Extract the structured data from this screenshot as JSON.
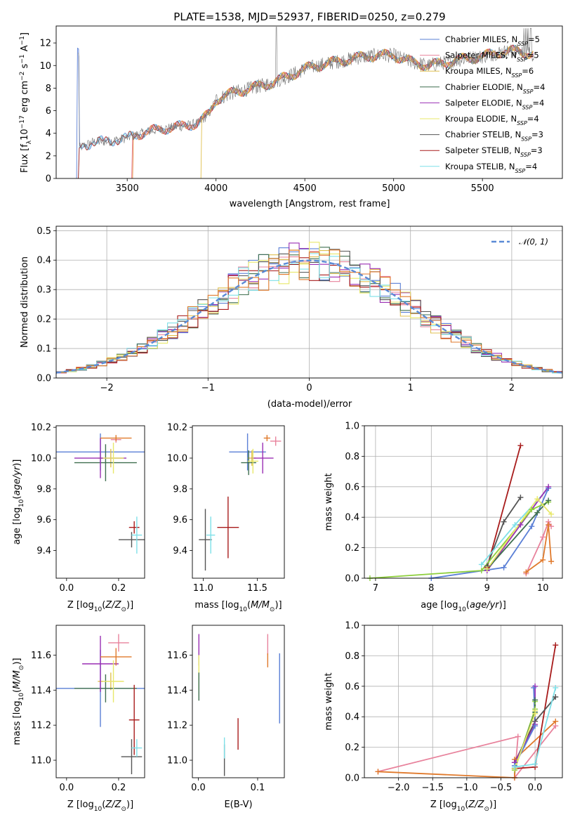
{
  "title": "PLATE=1538, MJD=52937, FIBERID=0250, z=0.279",
  "colors": {
    "Chabrier MILES": "#5a7fd6",
    "Salpeter MILES": "#e8829c",
    "Kroupa MILES": "#e0c050",
    "Chabrier ELODIE": "#3f6f4f",
    "Salpeter ELODIE": "#9a2fb4",
    "Kroupa ELODIE": "#e8e86a",
    "Chabrier STELIB": "#555555",
    "Salpeter STELIB": "#a81c1c",
    "Kroupa STELIB": "#7ee0e8",
    "orange": "#e07a2c",
    "green": "#8ecf3c",
    "gaussian": "#5a8ad6"
  },
  "legend": [
    {
      "name": "Chabrier MILES",
      "label_main": "Chabrier MILES, N",
      "label_sub": "SSP",
      "label_val": "=5"
    },
    {
      "name": "Salpeter MILES",
      "label_main": "Salpeter MILES, N",
      "label_sub": "SSP",
      "label_val": "=5"
    },
    {
      "name": "Kroupa MILES",
      "label_main": "Kroupa MILES, N",
      "label_sub": "SSP",
      "label_val": "=6"
    },
    {
      "name": "Chabrier ELODIE",
      "label_main": "Chabrier ELODIE, N",
      "label_sub": "SSP",
      "label_val": "=4"
    },
    {
      "name": "Salpeter ELODIE",
      "label_main": "Salpeter ELODIE, N",
      "label_sub": "SSP",
      "label_val": "=4"
    },
    {
      "name": "Kroupa ELODIE",
      "label_main": "Kroupa ELODIE, N",
      "label_sub": "SSP",
      "label_val": "=4"
    },
    {
      "name": "Chabrier STELIB",
      "label_main": "Chabrier STELIB, N",
      "label_sub": "SSP",
      "label_val": "=3"
    },
    {
      "name": "Salpeter STELIB",
      "label_main": "Salpeter STELIB, N",
      "label_sub": "SSP",
      "label_val": "=3"
    },
    {
      "name": "Kroupa STELIB",
      "label_main": "Kroupa STELIB, N",
      "label_sub": "SSP",
      "label_val": "=4"
    }
  ],
  "chart_data": [
    {
      "id": "spectrum",
      "type": "line",
      "title": "PLATE=1538, MJD=52937, FIBERID=0250, z=0.279",
      "xlabel": "wavelength [Angstrom, rest frame]",
      "ylabel": "Flux [fλ10⁻¹⁷ erg cm⁻² s⁻¹ A⁻¹]",
      "xlim": [
        3100,
        5950
      ],
      "ylim": [
        0,
        13.5
      ],
      "xticks": [
        3500,
        4000,
        4500,
        5000,
        5500
      ],
      "yticks": [
        0,
        2,
        4,
        6,
        8,
        10,
        12
      ],
      "grid": false,
      "legend_position": "top-right",
      "series_start": [
        {
          "name": "Chabrier MILES",
          "start": 3220
        },
        {
          "name": "Salpeter MILES",
          "start": 3530
        },
        {
          "name": "Kroupa MILES",
          "start": 3920
        }
      ],
      "continuum": [
        [
          3230,
          2.7
        ],
        [
          3300,
          3.2
        ],
        [
          3400,
          3.3
        ],
        [
          3500,
          3.6
        ],
        [
          3600,
          4.1
        ],
        [
          3700,
          4.4
        ],
        [
          3800,
          4.6
        ],
        [
          3900,
          4.9
        ],
        [
          3960,
          5.7
        ],
        [
          4000,
          7.0
        ],
        [
          4100,
          7.6
        ],
        [
          4200,
          8.0
        ],
        [
          4300,
          8.4
        ],
        [
          4400,
          9.0
        ],
        [
          4500,
          9.7
        ],
        [
          4600,
          10.1
        ],
        [
          4700,
          10.4
        ],
        [
          4800,
          10.7
        ],
        [
          4900,
          10.9
        ],
        [
          5000,
          10.9
        ],
        [
          5100,
          10.3
        ],
        [
          5200,
          10.0
        ],
        [
          5300,
          10.3
        ],
        [
          5400,
          10.6
        ],
        [
          5500,
          10.8
        ],
        [
          5600,
          11.2
        ],
        [
          5700,
          11.3
        ],
        [
          5780,
          11.0
        ]
      ]
    },
    {
      "id": "residuals",
      "type": "bar",
      "xlabel": "(data-model)/error",
      "ylabel": "Normed distribution",
      "xlim": [
        -2.5,
        2.5
      ],
      "ylim": [
        0,
        0.515
      ],
      "xticks": [
        -2,
        -1,
        0,
        1,
        2
      ],
      "yticks": [
        0.0,
        0.1,
        0.2,
        0.3,
        0.4,
        0.5
      ],
      "grid": true,
      "legend": "𝒩(0, 1)",
      "legend_position": "top-right",
      "bin_width": 0.1,
      "gaussian": {
        "mu": 0,
        "sigma": 1
      }
    },
    {
      "id": "age-vs-Z",
      "type": "scatter",
      "xlabel": "Z [log10(Z/Z⊙)]",
      "ylabel": "age [log10(age/yr)]",
      "xlim": [
        -0.04,
        0.3
      ],
      "ylim": [
        9.22,
        10.21
      ],
      "xticks": [
        0.0,
        0.2
      ],
      "yticks": [
        9.4,
        9.6,
        9.8,
        10.0,
        10.2
      ],
      "points": [
        {
          "name": "Chabrier MILES",
          "x": 0.13,
          "y": 10.04,
          "xerr": 0.17,
          "yerr": 0.12
        },
        {
          "name": "Salpeter MILES",
          "x": 0.19,
          "y": 10.12,
          "xerr": 0.02,
          "yerr": 0.02
        },
        {
          "name": "Kroupa MILES",
          "x": 0.17,
          "y": 10.0,
          "xerr": 0.05,
          "yerr": 0.06
        },
        {
          "name": "Chabrier ELODIE",
          "x": 0.15,
          "y": 9.97,
          "xerr": 0.12,
          "yerr": 0.12
        },
        {
          "name": "Salpeter ELODIE",
          "x": 0.13,
          "y": 10.0,
          "xerr": 0.1,
          "yerr": 0.13
        },
        {
          "name": "Kroupa ELODIE",
          "x": 0.18,
          "y": 10.0,
          "xerr": 0.04,
          "yerr": 0.1
        },
        {
          "name": "Chabrier STELIB",
          "x": 0.25,
          "y": 9.47,
          "xerr": 0.05,
          "yerr": 0.05
        },
        {
          "name": "Salpeter STELIB",
          "x": 0.26,
          "y": 9.55,
          "xerr": 0.02,
          "yerr": 0.04
        },
        {
          "name": "Kroupa STELIB",
          "x": 0.27,
          "y": 9.5,
          "xerr": 0.02,
          "yerr": 0.12
        },
        {
          "name": "orange",
          "x": 0.19,
          "y": 10.13,
          "xerr": 0.06,
          "yerr": 0.02
        }
      ]
    },
    {
      "id": "age-vs-mass",
      "type": "scatter",
      "xlabel": "mass [log10(M/M⊙)]",
      "ylabel": "",
      "xlim": [
        10.9,
        11.75
      ],
      "ylim": [
        9.22,
        10.21
      ],
      "xticks": [
        11.0,
        11.5
      ],
      "yticks": [
        9.4,
        9.6,
        9.8,
        10.0,
        10.2
      ],
      "points": [
        {
          "name": "Chabrier MILES",
          "x": 11.41,
          "y": 10.04,
          "xerr": 0.17,
          "yerr": 0.12
        },
        {
          "name": "Salpeter MILES",
          "x": 11.67,
          "y": 10.11,
          "xerr": 0.05,
          "yerr": 0.03
        },
        {
          "name": "Kroupa MILES",
          "x": 11.45,
          "y": 10.0,
          "xerr": 0.04,
          "yerr": 0.05
        },
        {
          "name": "Chabrier ELODIE",
          "x": 11.42,
          "y": 9.97,
          "xerr": 0.07,
          "yerr": 0.08
        },
        {
          "name": "Salpeter ELODIE",
          "x": 11.55,
          "y": 10.0,
          "xerr": 0.1,
          "yerr": 0.1
        },
        {
          "name": "Kroupa ELODIE",
          "x": 11.46,
          "y": 9.98,
          "xerr": 0.05,
          "yerr": 0.08
        },
        {
          "name": "Chabrier STELIB",
          "x": 11.02,
          "y": 9.47,
          "xerr": 0.06,
          "yerr": 0.2
        },
        {
          "name": "Salpeter STELIB",
          "x": 11.23,
          "y": 9.55,
          "xerr": 0.1,
          "yerr": 0.2
        },
        {
          "name": "Kroupa STELIB",
          "x": 11.07,
          "y": 9.5,
          "xerr": 0.04,
          "yerr": 0.12
        },
        {
          "name": "orange",
          "x": 11.59,
          "y": 10.13,
          "xerr": 0.03,
          "yerr": 0.02
        }
      ]
    },
    {
      "id": "weight-vs-age",
      "type": "line",
      "xlabel": "age [log10(age/yr)]",
      "ylabel": "mass weight",
      "xlim": [
        6.8,
        10.35
      ],
      "ylim": [
        0,
        1.0
      ],
      "xticks": [
        7,
        8,
        9,
        10
      ],
      "yticks": [
        0.0,
        0.2,
        0.4,
        0.6,
        0.8,
        1.0
      ],
      "grid": true,
      "series": [
        {
          "name": "Salpeter STELIB",
          "x": [
            9.0,
            9.6
          ],
          "y": [
            0.07,
            0.87
          ]
        },
        {
          "name": "Chabrier STELIB",
          "x": [
            9.0,
            9.3,
            9.6
          ],
          "y": [
            0.08,
            0.37,
            0.53
          ]
        },
        {
          "name": "Kroupa STELIB",
          "x": [
            8.9,
            9.5,
            10.1
          ],
          "y": [
            0.09,
            0.35,
            0.59
          ]
        },
        {
          "name": "Chabrier MILES",
          "x": [
            8.0,
            9.3,
            9.8,
            10.1
          ],
          "y": [
            0.0,
            0.07,
            0.34,
            0.59
          ]
        },
        {
          "name": "Salpeter ELODIE",
          "x": [
            9.0,
            9.6,
            10.1
          ],
          "y": [
            0.05,
            0.35,
            0.6
          ]
        },
        {
          "name": "green",
          "x": [
            6.9,
            8.9,
            9.8,
            10.1
          ],
          "y": [
            0.0,
            0.05,
            0.45,
            0.5
          ]
        },
        {
          "name": "Chabrier ELODIE",
          "x": [
            9.0,
            9.9,
            10.1
          ],
          "y": [
            0.06,
            0.43,
            0.51
          ]
        },
        {
          "name": "Kroupa ELODIE",
          "x": [
            9.0,
            9.9,
            10.15
          ],
          "y": [
            0.06,
            0.52,
            0.42
          ]
        },
        {
          "name": "Salpeter MILES",
          "x": [
            9.7,
            10.0,
            10.1,
            10.15
          ],
          "y": [
            0.03,
            0.27,
            0.37,
            0.34
          ]
        },
        {
          "name": "orange",
          "x": [
            9.7,
            10.0,
            10.1,
            10.15
          ],
          "y": [
            0.04,
            0.12,
            0.35,
            0.11
          ]
        }
      ]
    },
    {
      "id": "mass-vs-Z",
      "type": "scatter",
      "xlabel": "Z [log10(Z/Z⊙)]",
      "ylabel": "mass [log10(M/M⊙)]",
      "xlim": [
        -0.04,
        0.3
      ],
      "ylim": [
        10.9,
        11.77
      ],
      "xticks": [
        0.0,
        0.2
      ],
      "yticks": [
        11.0,
        11.2,
        11.4,
        11.6
      ],
      "points": [
        {
          "name": "Chabrier MILES",
          "x": 0.13,
          "y": 11.41,
          "xerr": 0.17,
          "yerr": 0.22
        },
        {
          "name": "Salpeter MILES",
          "x": 0.2,
          "y": 11.67,
          "xerr": 0.04,
          "yerr": 0.05
        },
        {
          "name": "Kroupa MILES",
          "x": 0.17,
          "y": 11.45,
          "xerr": 0.05,
          "yerr": 0.05
        },
        {
          "name": "Chabrier ELODIE",
          "x": 0.15,
          "y": 11.41,
          "xerr": 0.12,
          "yerr": 0.08
        },
        {
          "name": "Salpeter ELODIE",
          "x": 0.13,
          "y": 11.55,
          "xerr": 0.07,
          "yerr": 0.16
        },
        {
          "name": "Kroupa ELODIE",
          "x": 0.18,
          "y": 11.45,
          "xerr": 0.04,
          "yerr": 0.12
        },
        {
          "name": "Chabrier STELIB",
          "x": 0.25,
          "y": 11.02,
          "xerr": 0.04,
          "yerr": 0.1
        },
        {
          "name": "Salpeter STELIB",
          "x": 0.26,
          "y": 11.23,
          "xerr": 0.02,
          "yerr": 0.2
        },
        {
          "name": "Kroupa STELIB",
          "x": 0.27,
          "y": 11.07,
          "xerr": 0.02,
          "yerr": 0.05
        },
        {
          "name": "orange",
          "x": 0.19,
          "y": 11.59,
          "xerr": 0.06,
          "yerr": 0.05
        }
      ]
    },
    {
      "id": "mass-vs-EBV",
      "type": "scatter",
      "xlabel": "E(B-V)",
      "ylabel": "",
      "xlim": [
        -0.01,
        0.145
      ],
      "ylim": [
        10.9,
        11.77
      ],
      "xticks": [
        0.0,
        0.1
      ],
      "yticks": [
        11.0,
        11.2,
        11.4,
        11.6
      ],
      "points": [
        {
          "name": "Chabrier MILES",
          "x": 0.137,
          "y": 11.41,
          "xerr": 0,
          "yerr": 0.2
        },
        {
          "name": "Salpeter MILES",
          "x": 0.117,
          "y": 11.66,
          "xerr": 0,
          "yerr": 0.06
        },
        {
          "name": "Salpeter ELODIE",
          "x": 0.001,
          "y": 11.63,
          "xerr": 0,
          "yerr": 0.09
        },
        {
          "name": "Kroupa ELODIE",
          "x": 0.001,
          "y": 11.5,
          "xerr": 0,
          "yerr": 0.1
        },
        {
          "name": "Chabrier ELODIE",
          "x": 0.001,
          "y": 11.42,
          "xerr": 0,
          "yerr": 0.08
        },
        {
          "name": "Chabrier STELIB",
          "x": 0.044,
          "y": 11.0,
          "xerr": 0,
          "yerr": 0.09
        },
        {
          "name": "Kroupa STELIB",
          "x": 0.044,
          "y": 11.07,
          "xerr": 0,
          "yerr": 0.06
        },
        {
          "name": "Salpeter STELIB",
          "x": 0.067,
          "y": 11.15,
          "xerr": 0,
          "yerr": 0.09
        },
        {
          "name": "orange",
          "x": 0.117,
          "y": 11.57,
          "xerr": 0,
          "yerr": 0.04
        }
      ]
    },
    {
      "id": "weight-vs-Z",
      "type": "line",
      "xlabel": "Z [log10(Z/Z⊙)]",
      "ylabel": "mass weight",
      "xlim": [
        -2.5,
        0.4
      ],
      "ylim": [
        0,
        1.0
      ],
      "xticks": [
        -2.0,
        -1.5,
        -1.0,
        -0.5,
        0.0
      ],
      "yticks": [
        0.0,
        0.2,
        0.4,
        0.6,
        0.8,
        1.0
      ],
      "grid": true,
      "series": [
        {
          "name": "Salpeter MILES",
          "x": [
            -2.3,
            -0.25,
            -0.3,
            0.3
          ],
          "y": [
            0.04,
            0.27,
            0.0,
            0.34
          ]
        },
        {
          "name": "orange",
          "x": [
            -2.3,
            -0.3,
            -0.3,
            0.3
          ],
          "y": [
            0.04,
            0.0,
            0.12,
            0.37
          ]
        },
        {
          "name": "Salpeter STELIB",
          "x": [
            -0.3,
            0.0,
            0.3
          ],
          "y": [
            0.06,
            0.07,
            0.87
          ]
        },
        {
          "name": "Chabrier STELIB",
          "x": [
            -0.3,
            0.0,
            0.3
          ],
          "y": [
            0.1,
            0.37,
            0.53
          ]
        },
        {
          "name": "Salpeter ELODIE",
          "x": [
            -0.3,
            0.0,
            0.0
          ],
          "y": [
            0.1,
            0.35,
            0.6
          ]
        },
        {
          "name": "Chabrier MILES",
          "x": [
            -0.3,
            0.0,
            -0.02
          ],
          "y": [
            0.08,
            0.34,
            0.59
          ]
        },
        {
          "name": "green",
          "x": [
            -0.3,
            0.0,
            0.0
          ],
          "y": [
            0.05,
            0.45,
            0.5
          ]
        },
        {
          "name": "Chabrier ELODIE",
          "x": [
            -0.3,
            0.0,
            0.0
          ],
          "y": [
            0.06,
            0.43,
            0.51
          ]
        },
        {
          "name": "Kroupa ELODIE",
          "x": [
            -0.3,
            0.0,
            0.0
          ],
          "y": [
            0.06,
            0.42,
            0.44
          ]
        },
        {
          "name": "Kroupa STELIB",
          "x": [
            -0.3,
            0.0,
            0.3
          ],
          "y": [
            0.07,
            0.09,
            0.59
          ]
        }
      ]
    }
  ]
}
